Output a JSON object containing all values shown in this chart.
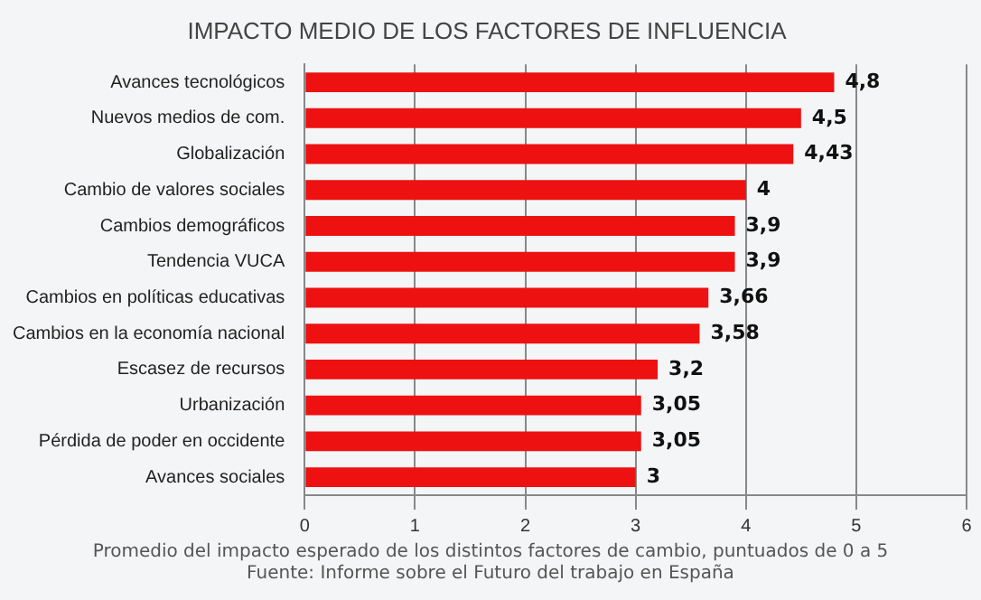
{
  "chart_data": {
    "type": "bar",
    "orientation": "horizontal",
    "title": "IMPACTO MEDIO DE LOS FACTORES DE INFLUENCIA",
    "categories": [
      "Avances tecnológicos",
      "Nuevos medios de com.",
      "Globalización",
      "Cambio de valores sociales",
      "Cambios demográficos",
      "Tendencia VUCA",
      "Cambios en políticas educativas",
      "Cambios en la economía nacional",
      "Escasez de recursos",
      "Urbanización",
      "Pérdida de poder en occidente",
      "Avances sociales"
    ],
    "values": [
      4.8,
      4.5,
      4.43,
      4,
      3.9,
      3.9,
      3.66,
      3.58,
      3.2,
      3.05,
      3.05,
      3
    ],
    "value_labels": [
      "4,8",
      "4,5",
      "4,43",
      "4",
      "3,9",
      "3,9",
      "3,66",
      "3,58",
      "3,2",
      "3,05",
      "3,05",
      "3"
    ],
    "color": "#ee1111",
    "xlim": [
      0,
      6
    ],
    "xticks": [
      0,
      1,
      2,
      3,
      4,
      5,
      6
    ],
    "grid": "x",
    "annotations": [
      "Promedio del impacto esperado de los distintos factores de cambio, puntuados de 0 a 5",
      "Fuente: Informe sobre el Futuro del trabajo en España"
    ]
  }
}
